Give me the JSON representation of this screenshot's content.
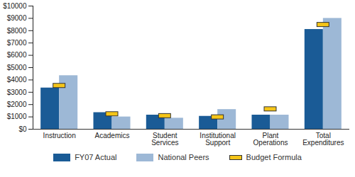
{
  "chart_data": {
    "type": "bar",
    "categories": [
      "Instruction",
      "Academics",
      "Student Services",
      "Institutional Support",
      "Plant Operations",
      "Total Expenditures"
    ],
    "series": [
      {
        "name": "FY07 Actual",
        "color": "#1a5b96",
        "values": [
          3350,
          1350,
          1150,
          1050,
          1150,
          8100
        ]
      },
      {
        "name": "National Peers",
        "color": "#9db8d6",
        "values": [
          4350,
          1000,
          900,
          1600,
          1150,
          9000
        ]
      },
      {
        "name": "Budget Formula",
        "color": "#f5c518",
        "type": "marker",
        "values": [
          3550,
          1250,
          1100,
          1000,
          1650,
          8500
        ]
      }
    ],
    "ylim": [
      0,
      10000
    ],
    "yticks": [
      {
        "value": 0,
        "label": "$0"
      },
      {
        "value": 1000,
        "label": "$1000"
      },
      {
        "value": 2000,
        "label": "$2000"
      },
      {
        "value": 3000,
        "label": "$3000"
      },
      {
        "value": 4000,
        "label": "$4000"
      },
      {
        "value": 5000,
        "label": "$5000"
      },
      {
        "value": 6000,
        "label": "$6000"
      },
      {
        "value": 7000,
        "label": "$7000"
      },
      {
        "value": 8000,
        "label": "$8000"
      },
      {
        "value": 9000,
        "label": "$9000"
      },
      {
        "value": 10000,
        "label": "$10000"
      }
    ],
    "grid": false,
    "legend": "bottom"
  }
}
